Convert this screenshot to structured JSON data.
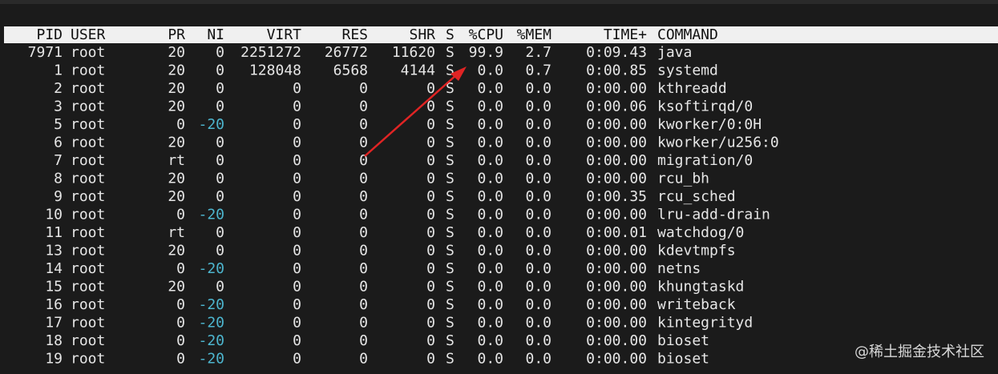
{
  "table": {
    "columns": [
      "PID",
      "USER",
      "PR",
      "NI",
      "VIRT",
      "RES",
      "SHR",
      "S",
      "%CPU",
      "%MEM",
      "TIME+",
      "COMMAND"
    ],
    "rows": [
      [
        "7971",
        "root",
        "20",
        "0",
        "2251272",
        "26772",
        "11620",
        "S",
        "99.9",
        "2.7",
        "0:09.43",
        "java"
      ],
      [
        "1",
        "root",
        "20",
        "0",
        "128048",
        "6568",
        "4144",
        "S",
        "0.0",
        "0.7",
        "0:00.85",
        "systemd"
      ],
      [
        "2",
        "root",
        "20",
        "0",
        "0",
        "0",
        "0",
        "S",
        "0.0",
        "0.0",
        "0:00.00",
        "kthreadd"
      ],
      [
        "3",
        "root",
        "20",
        "0",
        "0",
        "0",
        "0",
        "S",
        "0.0",
        "0.0",
        "0:00.06",
        "ksoftirqd/0"
      ],
      [
        "5",
        "root",
        "0",
        "-20",
        "0",
        "0",
        "0",
        "S",
        "0.0",
        "0.0",
        "0:00.00",
        "kworker/0:0H"
      ],
      [
        "6",
        "root",
        "20",
        "0",
        "0",
        "0",
        "0",
        "S",
        "0.0",
        "0.0",
        "0:00.00",
        "kworker/u256:0"
      ],
      [
        "7",
        "root",
        "rt",
        "0",
        "0",
        "0",
        "0",
        "S",
        "0.0",
        "0.0",
        "0:00.00",
        "migration/0"
      ],
      [
        "8",
        "root",
        "20",
        "0",
        "0",
        "0",
        "0",
        "S",
        "0.0",
        "0.0",
        "0:00.00",
        "rcu_bh"
      ],
      [
        "9",
        "root",
        "20",
        "0",
        "0",
        "0",
        "0",
        "S",
        "0.0",
        "0.0",
        "0:00.35",
        "rcu_sched"
      ],
      [
        "10",
        "root",
        "0",
        "-20",
        "0",
        "0",
        "0",
        "S",
        "0.0",
        "0.0",
        "0:00.00",
        "lru-add-drain"
      ],
      [
        "11",
        "root",
        "rt",
        "0",
        "0",
        "0",
        "0",
        "S",
        "0.0",
        "0.0",
        "0:00.01",
        "watchdog/0"
      ],
      [
        "13",
        "root",
        "20",
        "0",
        "0",
        "0",
        "0",
        "S",
        "0.0",
        "0.0",
        "0:00.00",
        "kdevtmpfs"
      ],
      [
        "14",
        "root",
        "0",
        "-20",
        "0",
        "0",
        "0",
        "S",
        "0.0",
        "0.0",
        "0:00.00",
        "netns"
      ],
      [
        "15",
        "root",
        "20",
        "0",
        "0",
        "0",
        "0",
        "S",
        "0.0",
        "0.0",
        "0:00.00",
        "khungtaskd"
      ],
      [
        "16",
        "root",
        "0",
        "-20",
        "0",
        "0",
        "0",
        "S",
        "0.0",
        "0.0",
        "0:00.00",
        "writeback"
      ],
      [
        "17",
        "root",
        "0",
        "-20",
        "0",
        "0",
        "0",
        "S",
        "0.0",
        "0.0",
        "0:00.00",
        "kintegrityd"
      ],
      [
        "18",
        "root",
        "0",
        "-20",
        "0",
        "0",
        "0",
        "S",
        "0.0",
        "0.0",
        "0:00.00",
        "bioset"
      ],
      [
        "19",
        "root",
        "0",
        "-20",
        "0",
        "0",
        "0",
        "S",
        "0.0",
        "0.0",
        "0:00.00",
        "bioset"
      ]
    ]
  },
  "watermark": "@稀土掘金技术社区"
}
